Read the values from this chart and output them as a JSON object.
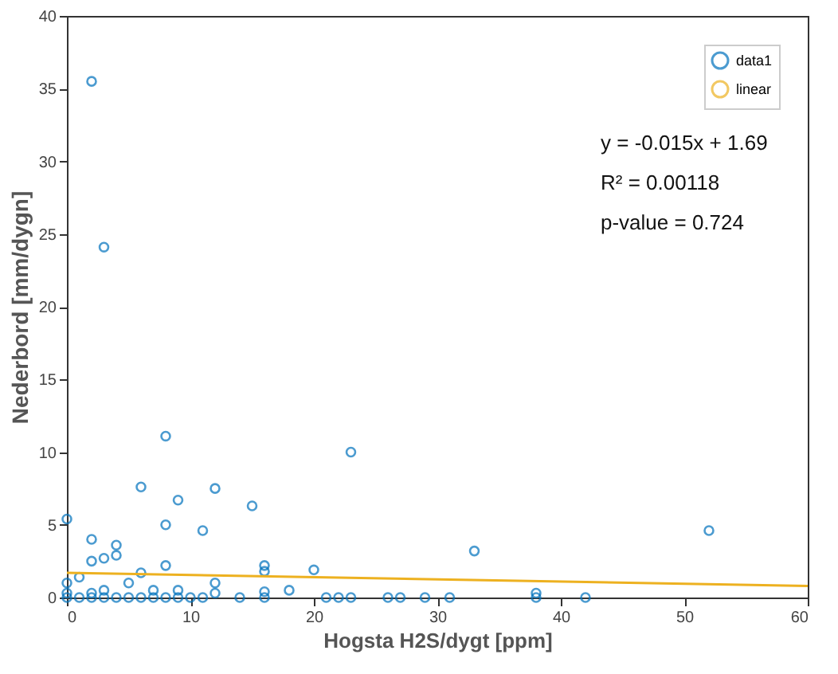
{
  "chart_data": {
    "type": "scatter",
    "xlabel": "Hogsta H2S/dygt [ppm]",
    "ylabel": "Nederbord [mm/dygn]",
    "xlim": [
      0,
      60
    ],
    "ylim": [
      0,
      40
    ],
    "xticks": [
      0,
      10,
      20,
      30,
      40,
      50,
      60
    ],
    "yticks": [
      0,
      5,
      10,
      15,
      20,
      25,
      30,
      35,
      40
    ],
    "grid": false,
    "legend": "top right",
    "marker": "circle",
    "series": [
      {
        "name": "data1",
        "color": "#0072bd",
        "x": [
          0,
          2,
          8,
          6,
          9,
          8,
          12,
          11,
          15,
          4,
          4,
          3,
          2,
          6,
          5,
          1,
          0,
          16,
          16,
          20,
          12,
          12,
          18,
          16,
          9,
          7,
          3,
          2,
          0,
          0,
          1,
          2,
          3,
          4,
          5,
          6,
          7,
          8,
          9,
          10,
          11,
          14,
          16,
          21,
          22,
          23,
          26,
          27,
          29,
          31,
          38,
          38,
          42,
          33,
          52,
          2,
          3,
          8,
          23
        ],
        "values": [
          5.4,
          4.0,
          2.2,
          7.6,
          6.7,
          5.0,
          7.5,
          4.6,
          6.3,
          3.6,
          2.9,
          2.7,
          2.5,
          1.7,
          1.0,
          1.4,
          1.0,
          2.2,
          1.8,
          1.9,
          1.0,
          0.3,
          0.5,
          0.4,
          0.5,
          0.5,
          0.5,
          0.3,
          0.3,
          0,
          0,
          0,
          0,
          0,
          0,
          0,
          0,
          0,
          0,
          0,
          0,
          0,
          0,
          0,
          0,
          0,
          0,
          0,
          0,
          0,
          0,
          0.3,
          0,
          3.2,
          4.6,
          35.5,
          24.1,
          11.1,
          10.0
        ]
      },
      {
        "name": "linear",
        "color": "#edb120",
        "type": "line",
        "marker": "none",
        "x": [
          0,
          60
        ],
        "values": [
          1.7,
          0.8
        ]
      }
    ],
    "annotations": [
      "y = -0.015x + 1.69",
      "R² = 0.00118",
      "p-value =  0.724"
    ]
  }
}
